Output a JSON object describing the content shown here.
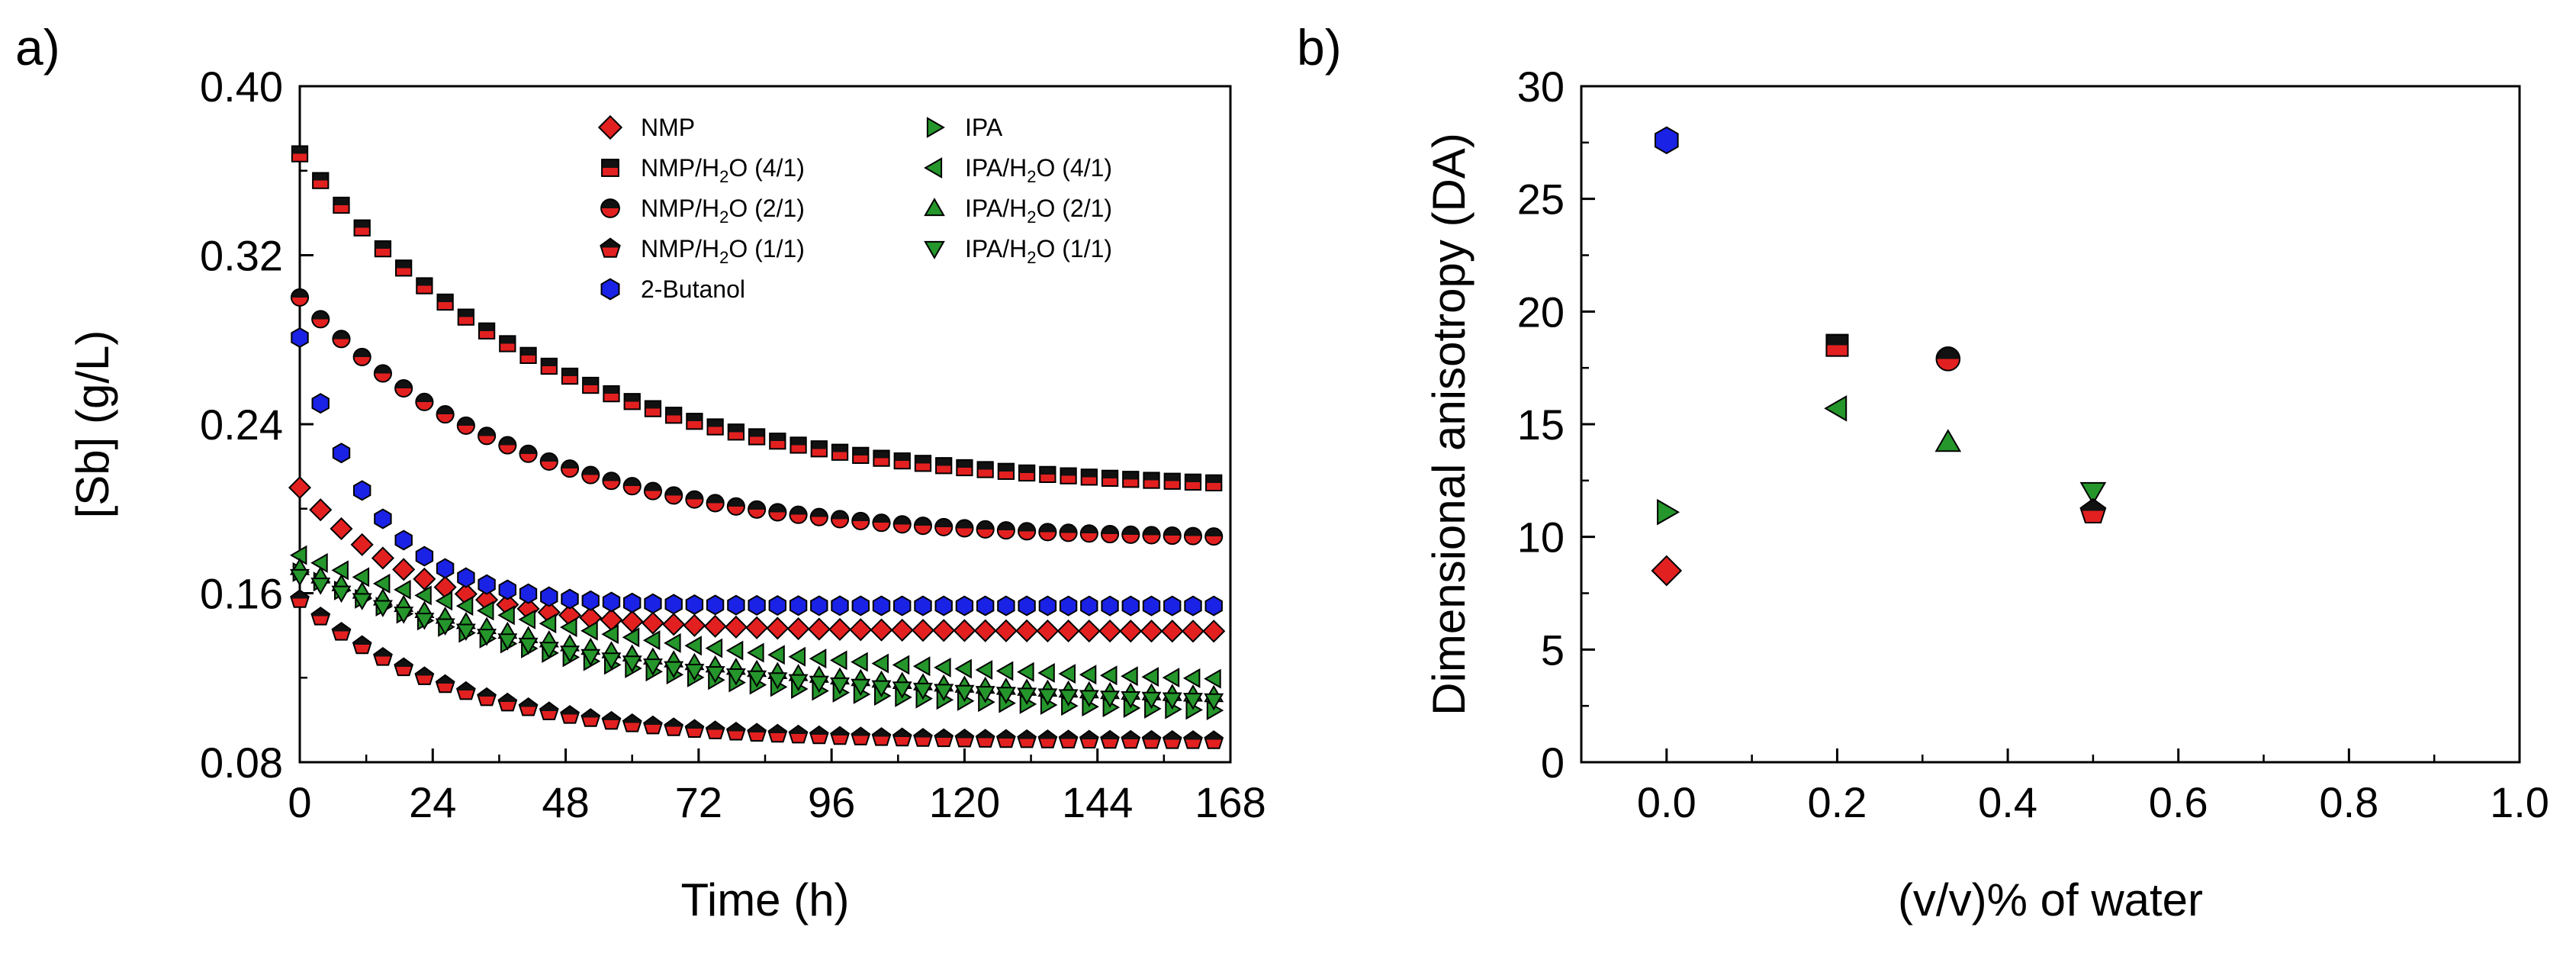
{
  "colors": {
    "red": "#e32020",
    "black": "#111111",
    "blue": "#1a22e6",
    "green": "#25962b",
    "frame": "#000000"
  },
  "chart_data": [
    {
      "panel": "a)",
      "type": "scatter",
      "xlabel": "Time (h)",
      "ylabel": "[Sb] (g/L)",
      "xlim": [
        0,
        168
      ],
      "ylim": [
        0.08,
        0.4
      ],
      "xticks": [
        "0",
        "24",
        "48",
        "72",
        "96",
        "120",
        "144",
        "168"
      ],
      "yticks": [
        "0.08",
        "0.16",
        "0.24",
        "0.32",
        "0.40"
      ],
      "legend": [
        {
          "name": "NMP",
          "label": "NMP",
          "sub": "",
          "tail": "",
          "marker": "diamond",
          "fill": "red"
        },
        {
          "name": "NMP/H2O (4/1)",
          "label": "NMP/H",
          "sub": "2",
          "tail": "O (4/1)",
          "marker": "square",
          "fill": "halfsq"
        },
        {
          "name": "NMP/H2O (2/1)",
          "label": "NMP/H",
          "sub": "2",
          "tail": "O (2/1)",
          "marker": "circle",
          "fill": "half"
        },
        {
          "name": "NMP/H2O (1/1)",
          "label": "NMP/H",
          "sub": "2",
          "tail": "O (1/1)",
          "marker": "pentagon",
          "fill": "half"
        },
        {
          "name": "2-Butanol",
          "label": "2-Butanol",
          "sub": "",
          "tail": "",
          "marker": "hexagon",
          "fill": "blue"
        },
        {
          "name": "IPA",
          "label": "IPA",
          "sub": "",
          "tail": "",
          "marker": "tri-right",
          "fill": "green"
        },
        {
          "name": "IPA/H2O (4/1)",
          "label": "IPA/H",
          "sub": "2",
          "tail": "O (4/1)",
          "marker": "tri-left",
          "fill": "green"
        },
        {
          "name": "IPA/H2O (2/1)",
          "label": "IPA/H",
          "sub": "2",
          "tail": "O (2/1)",
          "marker": "tri-up",
          "fill": "green"
        },
        {
          "name": "IPA/H2O (1/1)",
          "label": "IPA/H",
          "sub": "2",
          "tail": "O (1/1)",
          "marker": "tri-down",
          "fill": "green"
        }
      ],
      "series": [
        {
          "name": "NMP",
          "marker": "diamond",
          "fill": "red",
          "start": 0.21,
          "end": 0.142,
          "k": 0.045,
          "x_start": 0,
          "x_end": 165,
          "step": 3.75
        },
        {
          "name": "NMP/H2O (4/1)",
          "marker": "square",
          "fill": "halfsq",
          "start": 0.368,
          "end": 0.208,
          "k": 0.022,
          "x_start": 0,
          "x_end": 165,
          "step": 3.75
        },
        {
          "name": "NMP/H2O (2/1)",
          "marker": "circle",
          "fill": "half",
          "start": 0.3,
          "end": 0.185,
          "k": 0.025,
          "x_start": 0,
          "x_end": 165,
          "step": 3.75
        },
        {
          "name": "NMP/H2O (1/1)",
          "marker": "pentagon",
          "fill": "half",
          "start": 0.157,
          "end": 0.09,
          "k": 0.035,
          "x_start": 0,
          "x_end": 165,
          "step": 3.75
        },
        {
          "name": "2-Butanol",
          "marker": "hexagon",
          "fill": "blue",
          "start": 0.281,
          "end": 0.154,
          "k": 0.075,
          "x_start": 0,
          "x_end": 165,
          "step": 3.75
        },
        {
          "name": "IPA",
          "marker": "tri-right",
          "fill": "green",
          "start": 0.17,
          "end": 0.101,
          "k": 0.018,
          "x_start": 0,
          "x_end": 165,
          "step": 3.75
        },
        {
          "name": "IPA/H2O (4/1)",
          "marker": "tri-left",
          "fill": "green",
          "start": 0.178,
          "end": 0.115,
          "k": 0.016,
          "x_start": 0,
          "x_end": 165,
          "step": 3.75
        },
        {
          "name": "IPA/H2O (2/1)",
          "marker": "tri-up",
          "fill": "green",
          "start": 0.172,
          "end": 0.108,
          "k": 0.017,
          "x_start": 0,
          "x_end": 165,
          "step": 3.75
        },
        {
          "name": "IPA/H2O (1/1)",
          "marker": "tri-down",
          "fill": "green",
          "start": 0.168,
          "end": 0.106,
          "k": 0.018,
          "x_start": 0,
          "x_end": 165,
          "step": 3.75
        }
      ]
    },
    {
      "panel": "b)",
      "type": "scatter",
      "xlabel": "(v/v)% of water",
      "ylabel": "Dimensional anisotropy (DA)",
      "xlim": [
        -0.1,
        1.0
      ],
      "ylim": [
        0,
        30
      ],
      "xticks": [
        "0.0",
        "0.2",
        "0.4",
        "0.6",
        "0.8",
        "1.0"
      ],
      "yticks": [
        "0",
        "5",
        "10",
        "15",
        "20",
        "25",
        "30"
      ],
      "points": [
        {
          "name": "2-Butanol",
          "x": 0.0,
          "y": 27.6,
          "marker": "hexagon",
          "fill": "blue"
        },
        {
          "name": "IPA",
          "x": 0.0,
          "y": 11.1,
          "marker": "tri-right",
          "fill": "green"
        },
        {
          "name": "NMP",
          "x": 0.0,
          "y": 8.5,
          "marker": "diamond",
          "fill": "red"
        },
        {
          "name": "NMP/H2O (4/1)",
          "x": 0.2,
          "y": 18.5,
          "marker": "square",
          "fill": "halfsq"
        },
        {
          "name": "IPA/H2O (4/1)",
          "x": 0.2,
          "y": 15.7,
          "marker": "tri-left",
          "fill": "green"
        },
        {
          "name": "NMP/H2O (2/1)",
          "x": 0.33,
          "y": 17.9,
          "marker": "circle",
          "fill": "half"
        },
        {
          "name": "IPA/H2O (2/1)",
          "x": 0.33,
          "y": 14.2,
          "marker": "tri-up",
          "fill": "green"
        },
        {
          "name": "IPA/H2O (1/1)",
          "x": 0.5,
          "y": 12.0,
          "marker": "tri-down",
          "fill": "green"
        },
        {
          "name": "NMP/H2O (1/1)",
          "x": 0.5,
          "y": 11.1,
          "marker": "pentagon",
          "fill": "half"
        }
      ]
    }
  ]
}
